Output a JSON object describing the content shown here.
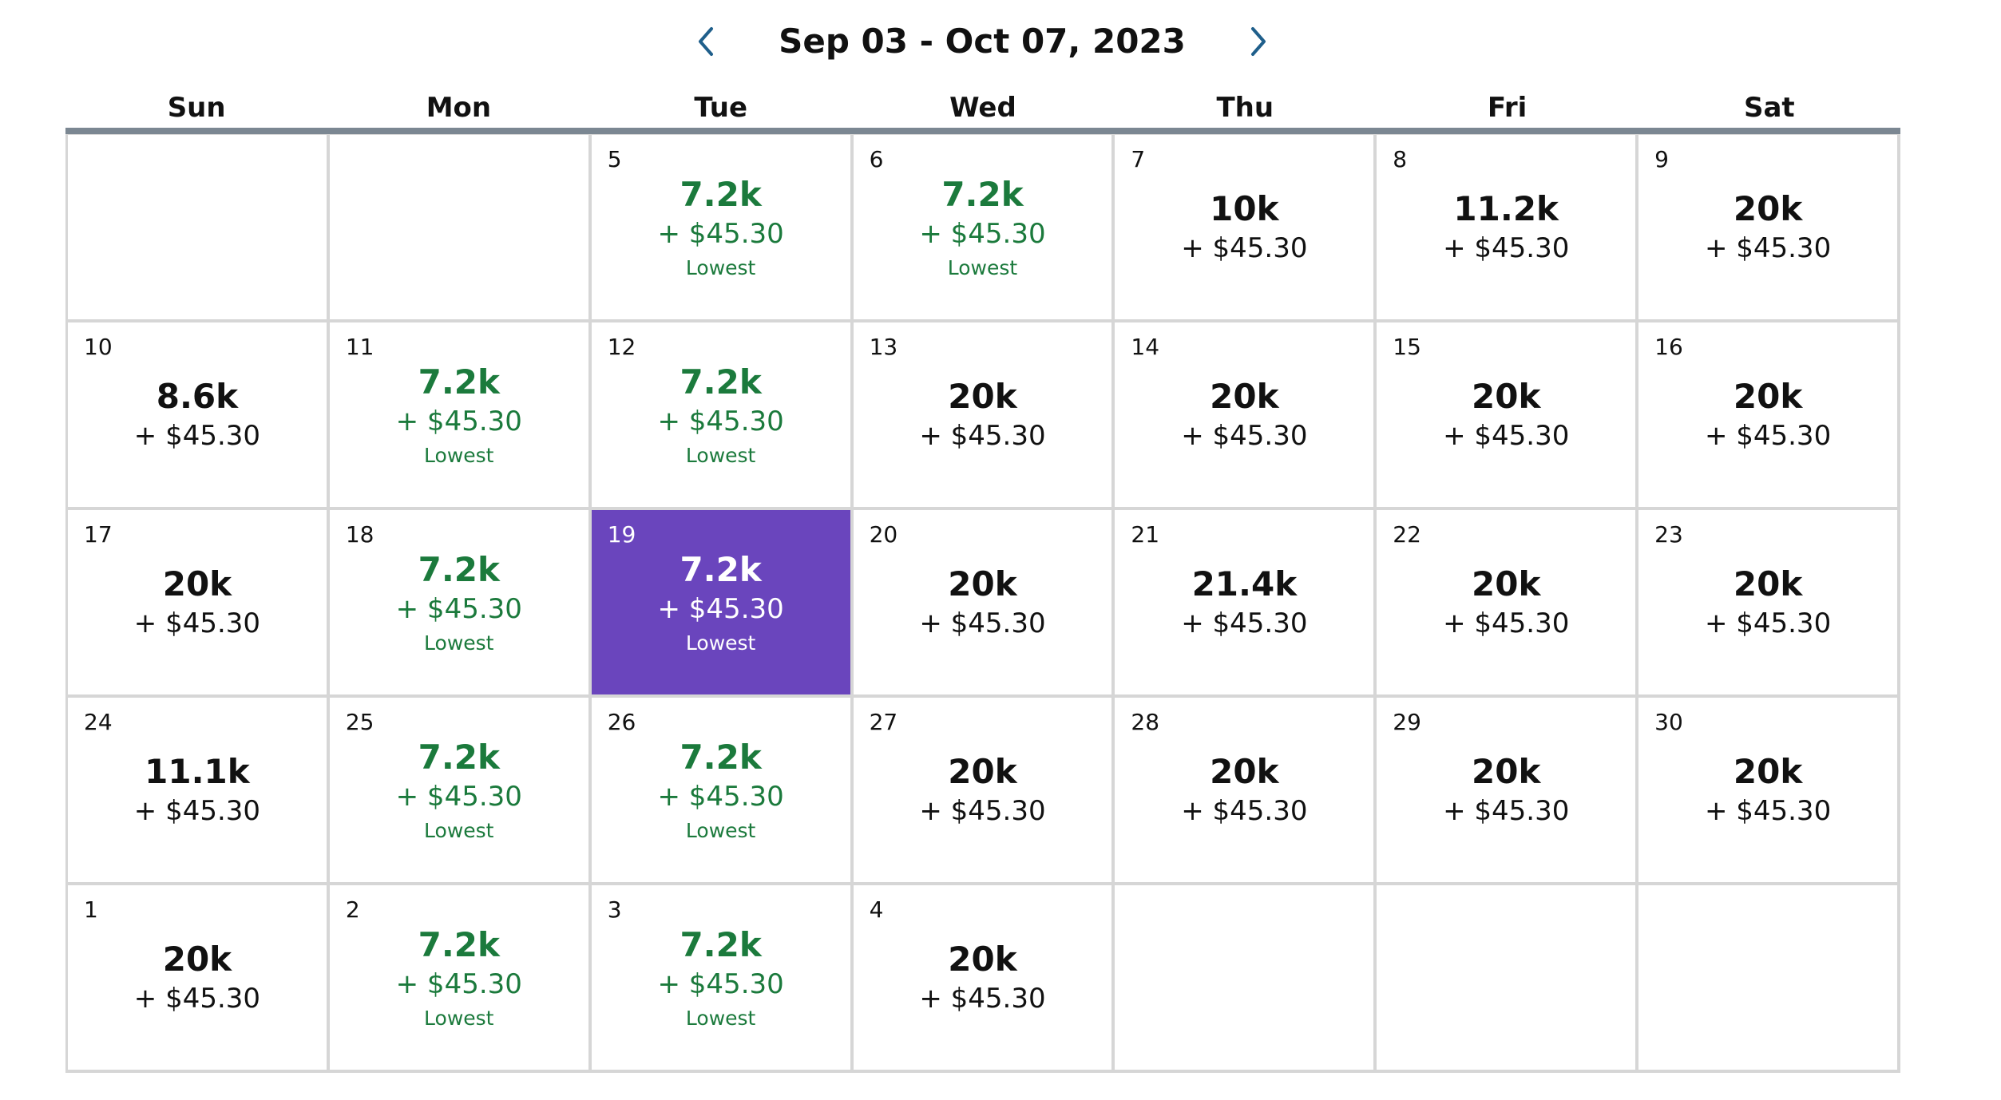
{
  "header": {
    "title": "Sep 03 - Oct 07, 2023",
    "prev_icon": "chevron-left-icon",
    "next_icon": "chevron-right-icon"
  },
  "weekdays": [
    "Sun",
    "Mon",
    "Tue",
    "Wed",
    "Thu",
    "Fri",
    "Sat"
  ],
  "colors": {
    "lowest_text": "#1b7a3c",
    "selected_background": "#6a45bd",
    "header_rule": "#7b8792",
    "grid_line": "#d6d6d6"
  },
  "selected_day": "19",
  "cells": [
    {
      "day": "",
      "miles": "",
      "fee": "",
      "note": ""
    },
    {
      "day": "",
      "miles": "",
      "fee": "",
      "note": ""
    },
    {
      "day": "5",
      "miles": "7.2k",
      "fee": "+ $45.30",
      "note": "Lowest"
    },
    {
      "day": "6",
      "miles": "7.2k",
      "fee": "+ $45.30",
      "note": "Lowest"
    },
    {
      "day": "7",
      "miles": "10k",
      "fee": "+ $45.30",
      "note": ""
    },
    {
      "day": "8",
      "miles": "11.2k",
      "fee": "+ $45.30",
      "note": ""
    },
    {
      "day": "9",
      "miles": "20k",
      "fee": "+ $45.30",
      "note": ""
    },
    {
      "day": "10",
      "miles": "8.6k",
      "fee": "+ $45.30",
      "note": ""
    },
    {
      "day": "11",
      "miles": "7.2k",
      "fee": "+ $45.30",
      "note": "Lowest"
    },
    {
      "day": "12",
      "miles": "7.2k",
      "fee": "+ $45.30",
      "note": "Lowest"
    },
    {
      "day": "13",
      "miles": "20k",
      "fee": "+ $45.30",
      "note": ""
    },
    {
      "day": "14",
      "miles": "20k",
      "fee": "+ $45.30",
      "note": ""
    },
    {
      "day": "15",
      "miles": "20k",
      "fee": "+ $45.30",
      "note": ""
    },
    {
      "day": "16",
      "miles": "20k",
      "fee": "+ $45.30",
      "note": ""
    },
    {
      "day": "17",
      "miles": "20k",
      "fee": "+ $45.30",
      "note": ""
    },
    {
      "day": "18",
      "miles": "7.2k",
      "fee": "+ $45.30",
      "note": "Lowest"
    },
    {
      "day": "19",
      "miles": "7.2k",
      "fee": "+ $45.30",
      "note": "Lowest"
    },
    {
      "day": "20",
      "miles": "20k",
      "fee": "+ $45.30",
      "note": ""
    },
    {
      "day": "21",
      "miles": "21.4k",
      "fee": "+ $45.30",
      "note": ""
    },
    {
      "day": "22",
      "miles": "20k",
      "fee": "+ $45.30",
      "note": ""
    },
    {
      "day": "23",
      "miles": "20k",
      "fee": "+ $45.30",
      "note": ""
    },
    {
      "day": "24",
      "miles": "11.1k",
      "fee": "+ $45.30",
      "note": ""
    },
    {
      "day": "25",
      "miles": "7.2k",
      "fee": "+ $45.30",
      "note": "Lowest"
    },
    {
      "day": "26",
      "miles": "7.2k",
      "fee": "+ $45.30",
      "note": "Lowest"
    },
    {
      "day": "27",
      "miles": "20k",
      "fee": "+ $45.30",
      "note": ""
    },
    {
      "day": "28",
      "miles": "20k",
      "fee": "+ $45.30",
      "note": ""
    },
    {
      "day": "29",
      "miles": "20k",
      "fee": "+ $45.30",
      "note": ""
    },
    {
      "day": "30",
      "miles": "20k",
      "fee": "+ $45.30",
      "note": ""
    },
    {
      "day": "1",
      "miles": "20k",
      "fee": "+ $45.30",
      "note": ""
    },
    {
      "day": "2",
      "miles": "7.2k",
      "fee": "+ $45.30",
      "note": "Lowest"
    },
    {
      "day": "3",
      "miles": "7.2k",
      "fee": "+ $45.30",
      "note": "Lowest"
    },
    {
      "day": "4",
      "miles": "20k",
      "fee": "+ $45.30",
      "note": ""
    },
    {
      "day": "",
      "miles": "",
      "fee": "",
      "note": ""
    },
    {
      "day": "",
      "miles": "",
      "fee": "",
      "note": ""
    },
    {
      "day": "",
      "miles": "",
      "fee": "",
      "note": ""
    }
  ]
}
